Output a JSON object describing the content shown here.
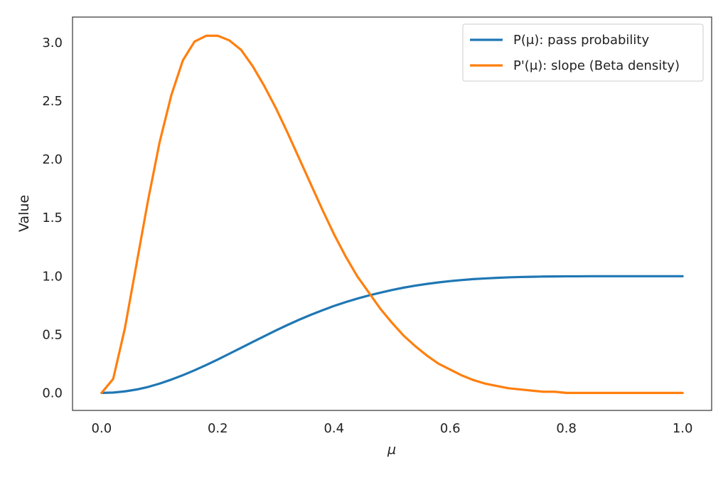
{
  "chart_data": {
    "type": "line",
    "title": "",
    "xlabel": "μ",
    "ylabel": "Value",
    "xlim": [
      -0.05,
      1.05
    ],
    "ylim": [
      -0.15,
      3.22
    ],
    "xticks": [
      0.0,
      0.2,
      0.4,
      0.6,
      0.8,
      1.0
    ],
    "xtick_labels": [
      "0.0",
      "0.2",
      "0.4",
      "0.6",
      "0.8",
      "1.0"
    ],
    "yticks": [
      0.0,
      0.5,
      1.0,
      1.5,
      2.0,
      2.5,
      3.0
    ],
    "ytick_labels": [
      "0.0",
      "0.5",
      "1.0",
      "1.5",
      "2.0",
      "2.5",
      "3.0"
    ],
    "grid": false,
    "legend_position": "top-right",
    "x": [
      0.0,
      0.02,
      0.04,
      0.06,
      0.08,
      0.1,
      0.12,
      0.14,
      0.16,
      0.18,
      0.2,
      0.22,
      0.24,
      0.26,
      0.28,
      0.3,
      0.32,
      0.34,
      0.36,
      0.38,
      0.4,
      0.42,
      0.44,
      0.46,
      0.48,
      0.5,
      0.52,
      0.54,
      0.56,
      0.58,
      0.6,
      0.62,
      0.64,
      0.66,
      0.68,
      0.7,
      0.72,
      0.74,
      0.76,
      0.78,
      0.8,
      0.82,
      0.84,
      0.86,
      0.88,
      0.9,
      0.92,
      0.94,
      0.96,
      0.98,
      1.0
    ],
    "series": [
      {
        "name": "P(μ): pass probability",
        "color": "#1f77b4",
        "values": [
          0.0,
          0.003,
          0.013,
          0.029,
          0.051,
          0.08,
          0.114,
          0.152,
          0.194,
          0.239,
          0.286,
          0.336,
          0.386,
          0.436,
          0.486,
          0.535,
          0.582,
          0.627,
          0.669,
          0.708,
          0.745,
          0.778,
          0.808,
          0.835,
          0.859,
          0.882,
          0.902,
          0.919,
          0.934,
          0.947,
          0.958,
          0.967,
          0.975,
          0.981,
          0.986,
          0.99,
          0.993,
          0.995,
          0.997,
          0.998,
          0.999,
          0.999,
          1.0,
          1.0,
          1.0,
          1.0,
          1.0,
          1.0,
          1.0,
          1.0,
          1.0
        ]
      },
      {
        "name": "P'(μ): slope (Beta density)",
        "color": "#ff7f0e",
        "values": [
          0.0,
          0.12,
          0.55,
          1.1,
          1.65,
          2.15,
          2.55,
          2.85,
          3.01,
          3.06,
          3.06,
          3.02,
          2.94,
          2.8,
          2.63,
          2.44,
          2.23,
          2.01,
          1.79,
          1.57,
          1.36,
          1.17,
          1.0,
          0.86,
          0.72,
          0.6,
          0.49,
          0.4,
          0.32,
          0.25,
          0.2,
          0.15,
          0.11,
          0.08,
          0.06,
          0.04,
          0.03,
          0.02,
          0.01,
          0.01,
          0.0,
          0.0,
          0.0,
          0.0,
          0.0,
          0.0,
          0.0,
          0.0,
          0.0,
          0.0,
          0.0
        ]
      }
    ]
  }
}
